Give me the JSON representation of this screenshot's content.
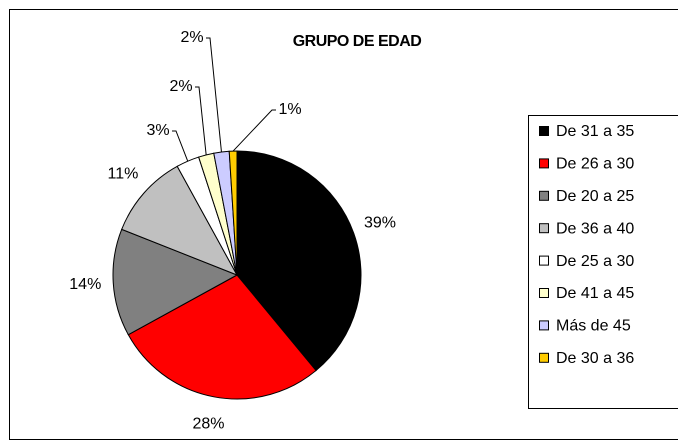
{
  "chart_data": {
    "type": "pie",
    "title": "GRUPO DE EDAD",
    "categories": [
      "De 31 a 35",
      "De 26 a 30",
      "De 20 a 25",
      "De 36 a 40",
      "De 25 a 30",
      "De 41 a 45",
      "Más de 45",
      "De 30 a 36"
    ],
    "values": [
      39,
      28,
      14,
      11,
      3,
      2,
      2,
      1
    ],
    "value_labels": [
      "39%",
      "28%",
      "14%",
      "11%",
      "3%",
      "2%",
      "2%",
      "1%"
    ],
    "colors": [
      "#000000",
      "#ff0000",
      "#808080",
      "#c0c0c0",
      "#ffffff",
      "#ffffcc",
      "#ccccff",
      "#ffcc00"
    ],
    "legend": "right"
  }
}
